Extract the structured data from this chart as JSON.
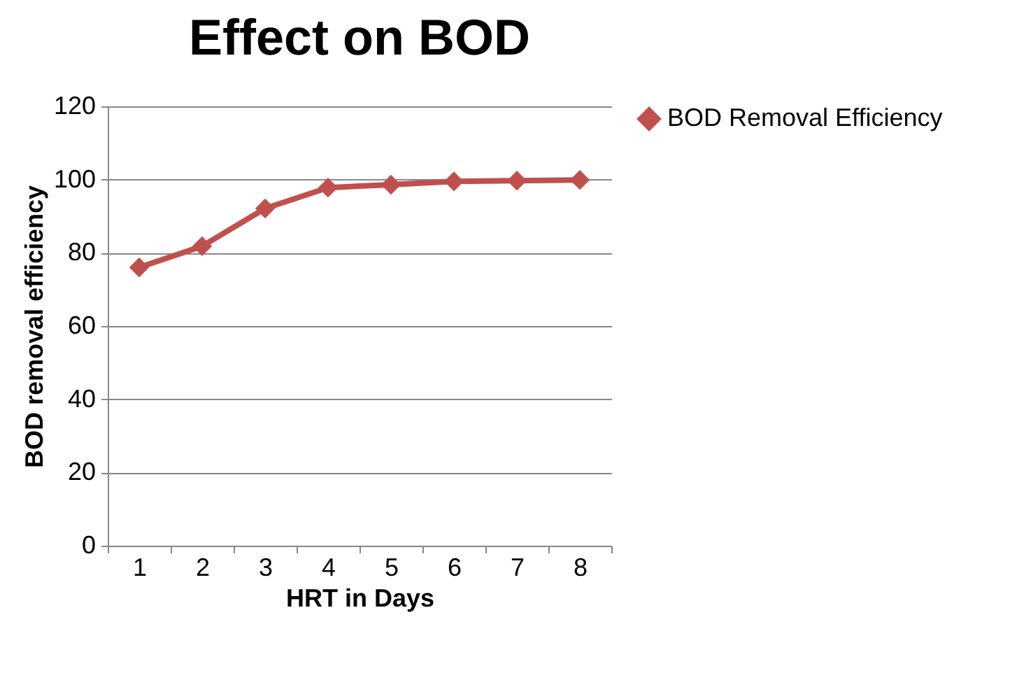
{
  "chart_data": {
    "type": "line",
    "title": "Effect on BOD",
    "xlabel": "HRT in  Days",
    "ylabel": "BOD removal efficiency",
    "categories": [
      "1",
      "2",
      "3",
      "4",
      "5",
      "6",
      "7",
      "8"
    ],
    "series": [
      {
        "name": "BOD Removal Efficiency",
        "color": "#c0504d",
        "values": [
          76,
          81.8,
          92.1,
          97.8,
          98.6,
          99.5,
          99.7,
          99.9
        ]
      }
    ],
    "ylim": [
      0,
      120
    ],
    "yticks": [
      0,
      20,
      40,
      60,
      80,
      100,
      120
    ],
    "grid": "y",
    "legend": "right",
    "marker": "diamond",
    "line_style": "solid"
  }
}
